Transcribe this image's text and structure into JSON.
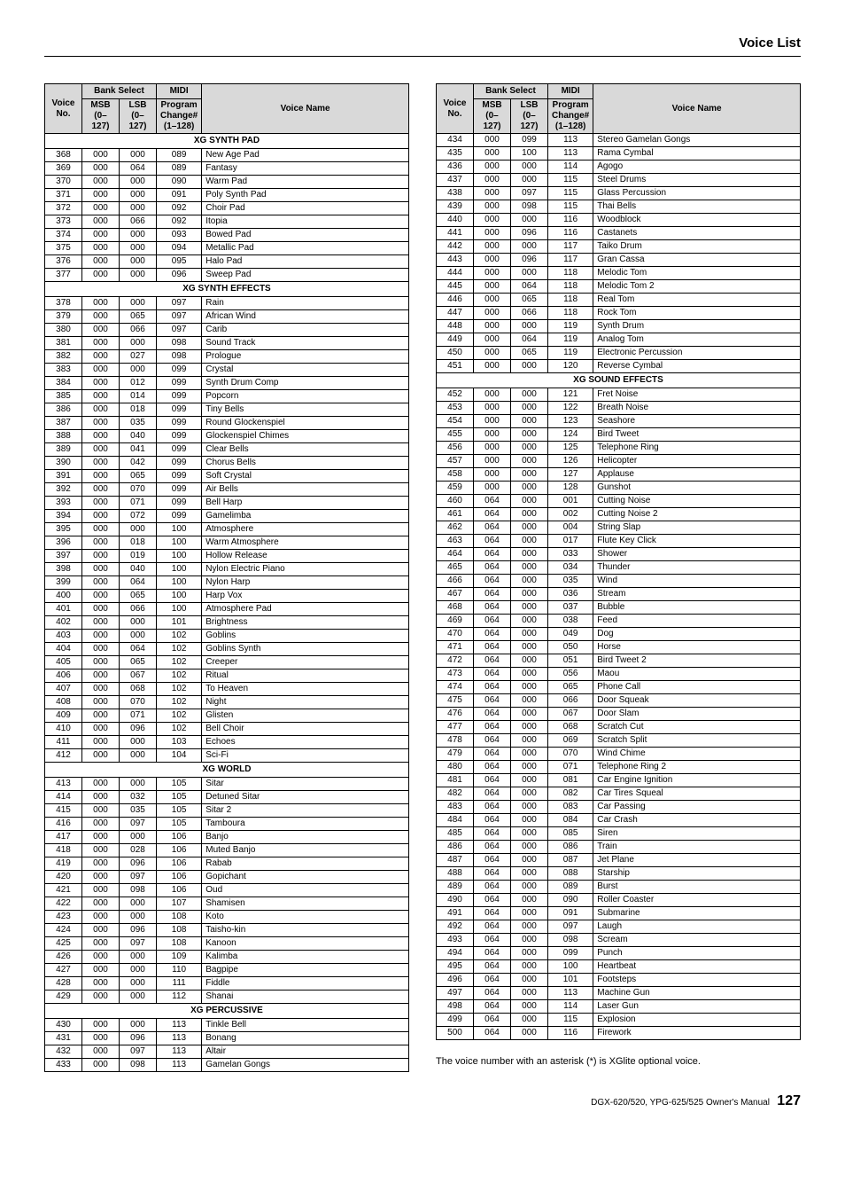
{
  "pageTitle": "Voice List",
  "headers": {
    "bankSelect": "Bank Select",
    "midi": "MIDI",
    "voiceNo": "Voice No.",
    "msb": "MSB (0–127)",
    "lsb": "LSB (0–127)",
    "program": "Program Change# (1–128)",
    "voiceName": "Voice Name"
  },
  "footnote": "The voice number with an asterisk (*) is XGlite optional voice.",
  "footerText": "DGX-620/520, YPG-625/525  Owner's Manual",
  "pageNumber": "127",
  "left": [
    {
      "section": "XG SYNTH PAD"
    },
    {
      "v": "368",
      "m": "000",
      "l": "000",
      "p": "089",
      "n": "New Age Pad"
    },
    {
      "v": "369",
      "m": "000",
      "l": "064",
      "p": "089",
      "n": "Fantasy"
    },
    {
      "v": "370",
      "m": "000",
      "l": "000",
      "p": "090",
      "n": "Warm Pad"
    },
    {
      "v": "371",
      "m": "000",
      "l": "000",
      "p": "091",
      "n": "Poly Synth Pad"
    },
    {
      "v": "372",
      "m": "000",
      "l": "000",
      "p": "092",
      "n": "Choir Pad"
    },
    {
      "v": "373",
      "m": "000",
      "l": "066",
      "p": "092",
      "n": "Itopia"
    },
    {
      "v": "374",
      "m": "000",
      "l": "000",
      "p": "093",
      "n": "Bowed Pad"
    },
    {
      "v": "375",
      "m": "000",
      "l": "000",
      "p": "094",
      "n": "Metallic Pad"
    },
    {
      "v": "376",
      "m": "000",
      "l": "000",
      "p": "095",
      "n": "Halo Pad"
    },
    {
      "v": "377",
      "m": "000",
      "l": "000",
      "p": "096",
      "n": "Sweep Pad"
    },
    {
      "section": "XG SYNTH EFFECTS"
    },
    {
      "v": "378",
      "m": "000",
      "l": "000",
      "p": "097",
      "n": "Rain"
    },
    {
      "v": "379",
      "m": "000",
      "l": "065",
      "p": "097",
      "n": "African Wind"
    },
    {
      "v": "380",
      "m": "000",
      "l": "066",
      "p": "097",
      "n": "Carib"
    },
    {
      "v": "381",
      "m": "000",
      "l": "000",
      "p": "098",
      "n": "Sound Track"
    },
    {
      "v": "382",
      "m": "000",
      "l": "027",
      "p": "098",
      "n": "Prologue"
    },
    {
      "v": "383",
      "m": "000",
      "l": "000",
      "p": "099",
      "n": "Crystal"
    },
    {
      "v": "384",
      "m": "000",
      "l": "012",
      "p": "099",
      "n": "Synth Drum Comp"
    },
    {
      "v": "385",
      "m": "000",
      "l": "014",
      "p": "099",
      "n": "Popcorn"
    },
    {
      "v": "386",
      "m": "000",
      "l": "018",
      "p": "099",
      "n": "Tiny Bells"
    },
    {
      "v": "387",
      "m": "000",
      "l": "035",
      "p": "099",
      "n": "Round Glockenspiel"
    },
    {
      "v": "388",
      "m": "000",
      "l": "040",
      "p": "099",
      "n": "Glockenspiel Chimes"
    },
    {
      "v": "389",
      "m": "000",
      "l": "041",
      "p": "099",
      "n": "Clear Bells"
    },
    {
      "v": "390",
      "m": "000",
      "l": "042",
      "p": "099",
      "n": "Chorus Bells"
    },
    {
      "v": "391",
      "m": "000",
      "l": "065",
      "p": "099",
      "n": "Soft Crystal"
    },
    {
      "v": "392",
      "m": "000",
      "l": "070",
      "p": "099",
      "n": "Air Bells"
    },
    {
      "v": "393",
      "m": "000",
      "l": "071",
      "p": "099",
      "n": "Bell Harp"
    },
    {
      "v": "394",
      "m": "000",
      "l": "072",
      "p": "099",
      "n": "Gamelimba"
    },
    {
      "v": "395",
      "m": "000",
      "l": "000",
      "p": "100",
      "n": "Atmosphere"
    },
    {
      "v": "396",
      "m": "000",
      "l": "018",
      "p": "100",
      "n": "Warm Atmosphere"
    },
    {
      "v": "397",
      "m": "000",
      "l": "019",
      "p": "100",
      "n": "Hollow Release"
    },
    {
      "v": "398",
      "m": "000",
      "l": "040",
      "p": "100",
      "n": "Nylon Electric Piano"
    },
    {
      "v": "399",
      "m": "000",
      "l": "064",
      "p": "100",
      "n": "Nylon Harp"
    },
    {
      "v": "400",
      "m": "000",
      "l": "065",
      "p": "100",
      "n": "Harp Vox"
    },
    {
      "v": "401",
      "m": "000",
      "l": "066",
      "p": "100",
      "n": "Atmosphere Pad"
    },
    {
      "v": "402",
      "m": "000",
      "l": "000",
      "p": "101",
      "n": "Brightness"
    },
    {
      "v": "403",
      "m": "000",
      "l": "000",
      "p": "102",
      "n": "Goblins"
    },
    {
      "v": "404",
      "m": "000",
      "l": "064",
      "p": "102",
      "n": "Goblins Synth"
    },
    {
      "v": "405",
      "m": "000",
      "l": "065",
      "p": "102",
      "n": "Creeper"
    },
    {
      "v": "406",
      "m": "000",
      "l": "067",
      "p": "102",
      "n": "Ritual"
    },
    {
      "v": "407",
      "m": "000",
      "l": "068",
      "p": "102",
      "n": "To Heaven"
    },
    {
      "v": "408",
      "m": "000",
      "l": "070",
      "p": "102",
      "n": "Night"
    },
    {
      "v": "409",
      "m": "000",
      "l": "071",
      "p": "102",
      "n": "Glisten"
    },
    {
      "v": "410",
      "m": "000",
      "l": "096",
      "p": "102",
      "n": "Bell Choir"
    },
    {
      "v": "411",
      "m": "000",
      "l": "000",
      "p": "103",
      "n": "Echoes"
    },
    {
      "v": "412",
      "m": "000",
      "l": "000",
      "p": "104",
      "n": "Sci-Fi"
    },
    {
      "section": "XG WORLD"
    },
    {
      "v": "413",
      "m": "000",
      "l": "000",
      "p": "105",
      "n": "Sitar"
    },
    {
      "v": "414",
      "m": "000",
      "l": "032",
      "p": "105",
      "n": "Detuned Sitar"
    },
    {
      "v": "415",
      "m": "000",
      "l": "035",
      "p": "105",
      "n": "Sitar 2"
    },
    {
      "v": "416",
      "m": "000",
      "l": "097",
      "p": "105",
      "n": "Tamboura"
    },
    {
      "v": "417",
      "m": "000",
      "l": "000",
      "p": "106",
      "n": "Banjo"
    },
    {
      "v": "418",
      "m": "000",
      "l": "028",
      "p": "106",
      "n": "Muted Banjo"
    },
    {
      "v": "419",
      "m": "000",
      "l": "096",
      "p": "106",
      "n": "Rabab"
    },
    {
      "v": "420",
      "m": "000",
      "l": "097",
      "p": "106",
      "n": "Gopichant"
    },
    {
      "v": "421",
      "m": "000",
      "l": "098",
      "p": "106",
      "n": "Oud"
    },
    {
      "v": "422",
      "m": "000",
      "l": "000",
      "p": "107",
      "n": "Shamisen"
    },
    {
      "v": "423",
      "m": "000",
      "l": "000",
      "p": "108",
      "n": "Koto"
    },
    {
      "v": "424",
      "m": "000",
      "l": "096",
      "p": "108",
      "n": "Taisho-kin"
    },
    {
      "v": "425",
      "m": "000",
      "l": "097",
      "p": "108",
      "n": "Kanoon"
    },
    {
      "v": "426",
      "m": "000",
      "l": "000",
      "p": "109",
      "n": "Kalimba"
    },
    {
      "v": "427",
      "m": "000",
      "l": "000",
      "p": "110",
      "n": "Bagpipe"
    },
    {
      "v": "428",
      "m": "000",
      "l": "000",
      "p": "111",
      "n": "Fiddle"
    },
    {
      "v": "429",
      "m": "000",
      "l": "000",
      "p": "112",
      "n": "Shanai"
    },
    {
      "section": "XG PERCUSSIVE"
    },
    {
      "v": "430",
      "m": "000",
      "l": "000",
      "p": "113",
      "n": "Tinkle Bell"
    },
    {
      "v": "431",
      "m": "000",
      "l": "096",
      "p": "113",
      "n": "Bonang"
    },
    {
      "v": "432",
      "m": "000",
      "l": "097",
      "p": "113",
      "n": "Altair"
    },
    {
      "v": "433",
      "m": "000",
      "l": "098",
      "p": "113",
      "n": "Gamelan Gongs"
    }
  ],
  "right": [
    {
      "v": "434",
      "m": "000",
      "l": "099",
      "p": "113",
      "n": "Stereo Gamelan Gongs"
    },
    {
      "v": "435",
      "m": "000",
      "l": "100",
      "p": "113",
      "n": "Rama Cymbal"
    },
    {
      "v": "436",
      "m": "000",
      "l": "000",
      "p": "114",
      "n": "Agogo"
    },
    {
      "v": "437",
      "m": "000",
      "l": "000",
      "p": "115",
      "n": "Steel Drums"
    },
    {
      "v": "438",
      "m": "000",
      "l": "097",
      "p": "115",
      "n": "Glass Percussion"
    },
    {
      "v": "439",
      "m": "000",
      "l": "098",
      "p": "115",
      "n": "Thai Bells"
    },
    {
      "v": "440",
      "m": "000",
      "l": "000",
      "p": "116",
      "n": "Woodblock"
    },
    {
      "v": "441",
      "m": "000",
      "l": "096",
      "p": "116",
      "n": "Castanets"
    },
    {
      "v": "442",
      "m": "000",
      "l": "000",
      "p": "117",
      "n": "Taiko Drum"
    },
    {
      "v": "443",
      "m": "000",
      "l": "096",
      "p": "117",
      "n": "Gran Cassa"
    },
    {
      "v": "444",
      "m": "000",
      "l": "000",
      "p": "118",
      "n": "Melodic Tom"
    },
    {
      "v": "445",
      "m": "000",
      "l": "064",
      "p": "118",
      "n": "Melodic Tom 2"
    },
    {
      "v": "446",
      "m": "000",
      "l": "065",
      "p": "118",
      "n": "Real Tom"
    },
    {
      "v": "447",
      "m": "000",
      "l": "066",
      "p": "118",
      "n": "Rock Tom"
    },
    {
      "v": "448",
      "m": "000",
      "l": "000",
      "p": "119",
      "n": "Synth Drum"
    },
    {
      "v": "449",
      "m": "000",
      "l": "064",
      "p": "119",
      "n": "Analog Tom"
    },
    {
      "v": "450",
      "m": "000",
      "l": "065",
      "p": "119",
      "n": "Electronic Percussion"
    },
    {
      "v": "451",
      "m": "000",
      "l": "000",
      "p": "120",
      "n": "Reverse Cymbal"
    },
    {
      "section": "XG SOUND EFFECTS"
    },
    {
      "v": "452",
      "m": "000",
      "l": "000",
      "p": "121",
      "n": "Fret Noise"
    },
    {
      "v": "453",
      "m": "000",
      "l": "000",
      "p": "122",
      "n": "Breath Noise"
    },
    {
      "v": "454",
      "m": "000",
      "l": "000",
      "p": "123",
      "n": "Seashore"
    },
    {
      "v": "455",
      "m": "000",
      "l": "000",
      "p": "124",
      "n": "Bird Tweet"
    },
    {
      "v": "456",
      "m": "000",
      "l": "000",
      "p": "125",
      "n": "Telephone Ring"
    },
    {
      "v": "457",
      "m": "000",
      "l": "000",
      "p": "126",
      "n": "Helicopter"
    },
    {
      "v": "458",
      "m": "000",
      "l": "000",
      "p": "127",
      "n": "Applause"
    },
    {
      "v": "459",
      "m": "000",
      "l": "000",
      "p": "128",
      "n": "Gunshot"
    },
    {
      "v": "460",
      "m": "064",
      "l": "000",
      "p": "001",
      "n": "Cutting Noise"
    },
    {
      "v": "461",
      "m": "064",
      "l": "000",
      "p": "002",
      "n": "Cutting Noise 2"
    },
    {
      "v": "462",
      "m": "064",
      "l": "000",
      "p": "004",
      "n": "String Slap"
    },
    {
      "v": "463",
      "m": "064",
      "l": "000",
      "p": "017",
      "n": "Flute Key Click"
    },
    {
      "v": "464",
      "m": "064",
      "l": "000",
      "p": "033",
      "n": "Shower"
    },
    {
      "v": "465",
      "m": "064",
      "l": "000",
      "p": "034",
      "n": "Thunder"
    },
    {
      "v": "466",
      "m": "064",
      "l": "000",
      "p": "035",
      "n": "Wind"
    },
    {
      "v": "467",
      "m": "064",
      "l": "000",
      "p": "036",
      "n": "Stream"
    },
    {
      "v": "468",
      "m": "064",
      "l": "000",
      "p": "037",
      "n": "Bubble"
    },
    {
      "v": "469",
      "m": "064",
      "l": "000",
      "p": "038",
      "n": "Feed"
    },
    {
      "v": "470",
      "m": "064",
      "l": "000",
      "p": "049",
      "n": "Dog"
    },
    {
      "v": "471",
      "m": "064",
      "l": "000",
      "p": "050",
      "n": "Horse"
    },
    {
      "v": "472",
      "m": "064",
      "l": "000",
      "p": "051",
      "n": "Bird Tweet 2"
    },
    {
      "v": "473",
      "m": "064",
      "l": "000",
      "p": "056",
      "n": "Maou"
    },
    {
      "v": "474",
      "m": "064",
      "l": "000",
      "p": "065",
      "n": "Phone Call"
    },
    {
      "v": "475",
      "m": "064",
      "l": "000",
      "p": "066",
      "n": "Door Squeak"
    },
    {
      "v": "476",
      "m": "064",
      "l": "000",
      "p": "067",
      "n": "Door Slam"
    },
    {
      "v": "477",
      "m": "064",
      "l": "000",
      "p": "068",
      "n": "Scratch Cut"
    },
    {
      "v": "478",
      "m": "064",
      "l": "000",
      "p": "069",
      "n": "Scratch Split"
    },
    {
      "v": "479",
      "m": "064",
      "l": "000",
      "p": "070",
      "n": "Wind Chime"
    },
    {
      "v": "480",
      "m": "064",
      "l": "000",
      "p": "071",
      "n": "Telephone Ring 2"
    },
    {
      "v": "481",
      "m": "064",
      "l": "000",
      "p": "081",
      "n": "Car Engine Ignition"
    },
    {
      "v": "482",
      "m": "064",
      "l": "000",
      "p": "082",
      "n": "Car Tires Squeal"
    },
    {
      "v": "483",
      "m": "064",
      "l": "000",
      "p": "083",
      "n": "Car Passing"
    },
    {
      "v": "484",
      "m": "064",
      "l": "000",
      "p": "084",
      "n": "Car Crash"
    },
    {
      "v": "485",
      "m": "064",
      "l": "000",
      "p": "085",
      "n": "Siren"
    },
    {
      "v": "486",
      "m": "064",
      "l": "000",
      "p": "086",
      "n": "Train"
    },
    {
      "v": "487",
      "m": "064",
      "l": "000",
      "p": "087",
      "n": "Jet Plane"
    },
    {
      "v": "488",
      "m": "064",
      "l": "000",
      "p": "088",
      "n": "Starship"
    },
    {
      "v": "489",
      "m": "064",
      "l": "000",
      "p": "089",
      "n": "Burst"
    },
    {
      "v": "490",
      "m": "064",
      "l": "000",
      "p": "090",
      "n": "Roller Coaster"
    },
    {
      "v": "491",
      "m": "064",
      "l": "000",
      "p": "091",
      "n": "Submarine"
    },
    {
      "v": "492",
      "m": "064",
      "l": "000",
      "p": "097",
      "n": "Laugh"
    },
    {
      "v": "493",
      "m": "064",
      "l": "000",
      "p": "098",
      "n": "Scream"
    },
    {
      "v": "494",
      "m": "064",
      "l": "000",
      "p": "099",
      "n": "Punch"
    },
    {
      "v": "495",
      "m": "064",
      "l": "000",
      "p": "100",
      "n": "Heartbeat"
    },
    {
      "v": "496",
      "m": "064",
      "l": "000",
      "p": "101",
      "n": "Footsteps"
    },
    {
      "v": "497",
      "m": "064",
      "l": "000",
      "p": "113",
      "n": "Machine Gun"
    },
    {
      "v": "498",
      "m": "064",
      "l": "000",
      "p": "114",
      "n": "Laser Gun"
    },
    {
      "v": "499",
      "m": "064",
      "l": "000",
      "p": "115",
      "n": "Explosion"
    },
    {
      "v": "500",
      "m": "064",
      "l": "000",
      "p": "116",
      "n": "Firework"
    }
  ]
}
